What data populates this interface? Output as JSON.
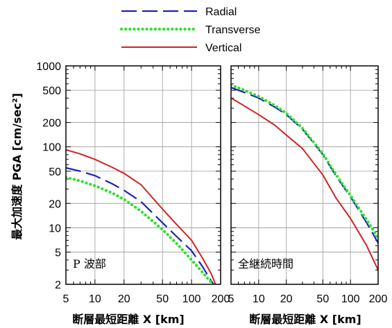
{
  "chart_data": {
    "type": "line",
    "ylabel": "最大加速度 PGA [cm/sec²]",
    "xscale": "log",
    "yscale": "log",
    "grid": true,
    "legend_position": "top-center",
    "legend": [
      {
        "name": "Radial",
        "color": "#1c22b4",
        "style": "dashed"
      },
      {
        "name": "Transverse",
        "color": "#2ee02e",
        "style": "dotted"
      },
      {
        "name": "Vertical",
        "color": "#d42020",
        "style": "solid"
      }
    ],
    "panels": [
      {
        "label": "P 波部",
        "xlabel": "断層最短距離 X [km]",
        "xlim": [
          5,
          200
        ],
        "ylim": [
          2,
          1000
        ],
        "x_ticks": [
          5,
          10,
          20,
          50,
          100,
          200
        ],
        "x_tick_labels": [
          "5",
          "10",
          "20",
          "50",
          "100",
          "200"
        ],
        "y_ticks": [
          2,
          5,
          10,
          20,
          50,
          100,
          200,
          500,
          1000
        ],
        "y_tick_labels": [
          "2",
          "5",
          "10",
          "20",
          "50",
          "100",
          "200",
          "500",
          "1000"
        ],
        "x": [
          5,
          7,
          10,
          15,
          20,
          30,
          50,
          70,
          100,
          130,
          160,
          180
        ],
        "series": [
          {
            "name": "Radial",
            "values": [
              55,
              50,
              44,
              35,
              29,
              21,
              11.5,
              7.8,
              5.2,
              3.3,
              2.2,
              1.8
            ]
          },
          {
            "name": "Transverse",
            "values": [
              42,
              38,
              33,
              27,
              22.5,
              16,
              9.5,
              6.4,
              4,
              2.8,
              2.1,
              1.7
            ]
          },
          {
            "name": "Vertical",
            "values": [
              92,
              82,
              70,
              56,
              47,
              34,
              17,
              11,
              7,
              4.2,
              2.7,
              1.9
            ]
          }
        ]
      },
      {
        "label": "全継続時間",
        "xlabel": "断層最短距離 X [km]",
        "xlim": [
          5,
          200
        ],
        "ylim": [
          2,
          1000
        ],
        "x_ticks": [
          5,
          10,
          20,
          50,
          100,
          200
        ],
        "x_tick_labels": [
          "5",
          "10",
          "20",
          "50",
          "100",
          "200"
        ],
        "y_ticks": [
          2,
          5,
          10,
          20,
          50,
          100,
          200,
          500,
          1000
        ],
        "x": [
          5,
          7,
          10,
          15,
          20,
          30,
          50,
          70,
          100,
          150,
          200
        ],
        "series": [
          {
            "name": "Radial",
            "values": [
              540,
              470,
              400,
              310,
              250,
              165,
              80,
              43,
              24,
              11.5,
              6.5
            ]
          },
          {
            "name": "Transverse",
            "values": [
              580,
              500,
              420,
              325,
              260,
              170,
              82,
              45,
              25,
              12.5,
              7.5
            ]
          },
          {
            "name": "Vertical",
            "values": [
              400,
              320,
              250,
              185,
              140,
              95,
              45,
              23,
              13,
              6,
              3
            ]
          }
        ]
      }
    ]
  }
}
